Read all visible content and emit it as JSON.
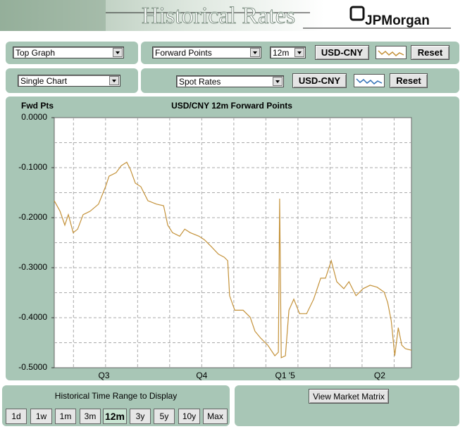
{
  "header": {
    "title": "Historical Rates",
    "logo": "JPMorgan"
  },
  "controls": {
    "graph_select": "Top Graph",
    "series_type": "Forward Points",
    "tenor": "12m",
    "pair_1": "USD-CNY",
    "reset_1": "Reset",
    "layout_select": "Single Chart",
    "series_type_2": "Spot Rates",
    "pair_2": "USD-CNY",
    "reset_2": "Reset"
  },
  "range": {
    "title": "Historical Time Range to Display",
    "buttons": [
      "1d",
      "1w",
      "1m",
      "3m",
      "12m",
      "3y",
      "5y",
      "10y",
      "Max"
    ],
    "selected": "12m"
  },
  "matrix_button": "View Market Matrix",
  "chart_data": {
    "type": "line",
    "title": "USD/CNY 12m Forward Points",
    "ylabel": "Fwd Pts",
    "x": [
      0,
      0.18,
      0.33,
      0.44,
      0.59,
      0.73,
      0.9,
      1.12,
      1.38,
      1.6,
      1.71,
      1.93,
      2.09,
      2.26,
      2.37,
      2.53,
      2.7,
      2.92,
      3.19,
      3.41,
      3.54,
      3.69,
      3.91,
      4.07,
      4.24,
      4.51,
      4.68,
      4.9,
      5.12,
      5.3,
      5.41,
      5.47,
      5.63,
      5.89,
      6.11,
      6.26,
      6.44,
      6.66,
      6.88,
      6.99,
      7.03,
      7.08,
      7.21,
      7.32,
      7.47,
      7.65,
      7.87,
      8.09,
      8.31,
      8.46,
      8.64,
      8.81,
      9.03,
      9.19,
      9.41,
      9.63,
      9.85,
      10.07,
      10.29,
      10.4,
      10.51,
      10.62,
      10.73,
      10.84,
      10.95,
      11.14
    ],
    "series": [
      {
        "name": "USD-CNY",
        "color": "#c4923a",
        "values": [
          -0.166,
          -0.187,
          -0.215,
          -0.194,
          -0.23,
          -0.223,
          -0.194,
          -0.187,
          -0.173,
          -0.138,
          -0.117,
          -0.11,
          -0.096,
          -0.089,
          -0.103,
          -0.131,
          -0.138,
          -0.166,
          -0.173,
          -0.176,
          -0.215,
          -0.23,
          -0.237,
          -0.223,
          -0.23,
          -0.237,
          -0.244,
          -0.258,
          -0.273,
          -0.279,
          -0.286,
          -0.356,
          -0.385,
          -0.385,
          -0.399,
          -0.427,
          -0.441,
          -0.455,
          -0.476,
          -0.469,
          -0.162,
          -0.48,
          -0.476,
          -0.385,
          -0.363,
          -0.392,
          -0.392,
          -0.363,
          -0.321,
          -0.321,
          -0.286,
          -0.328,
          -0.342,
          -0.328,
          -0.356,
          -0.342,
          -0.335,
          -0.339,
          -0.349,
          -0.37,
          -0.406,
          -0.476,
          -0.42,
          -0.455,
          -0.462,
          -0.465
        ]
      }
    ],
    "xlim": [
      0,
      11.14
    ],
    "xticks": [
      {
        "value": 1.55,
        "label": "Q3"
      },
      {
        "value": 4.6,
        "label": "Q4"
      },
      {
        "value": 7.2,
        "label": "Q1 '5"
      },
      {
        "value": 10.15,
        "label": "Q2"
      }
    ],
    "xgrid": [
      0.6,
      1.6,
      2.6,
      3.6,
      4.6,
      5.6,
      6.6,
      7.6,
      8.6,
      9.6,
      10.6
    ],
    "ylim": [
      -0.5,
      0
    ],
    "yticks": [
      {
        "value": 0,
        "label": "0.0000"
      },
      {
        "value": -0.1,
        "label": "-0.1000"
      },
      {
        "value": -0.2,
        "label": "-0.2000"
      },
      {
        "value": -0.3,
        "label": "-0.3000"
      },
      {
        "value": -0.4,
        "label": "-0.4000"
      },
      {
        "value": -0.5,
        "label": "-0.5000"
      }
    ],
    "ygrid": [
      -0.05,
      -0.1,
      -0.15,
      -0.2,
      -0.25,
      -0.3,
      -0.35,
      -0.4,
      -0.45
    ],
    "grid": true
  }
}
